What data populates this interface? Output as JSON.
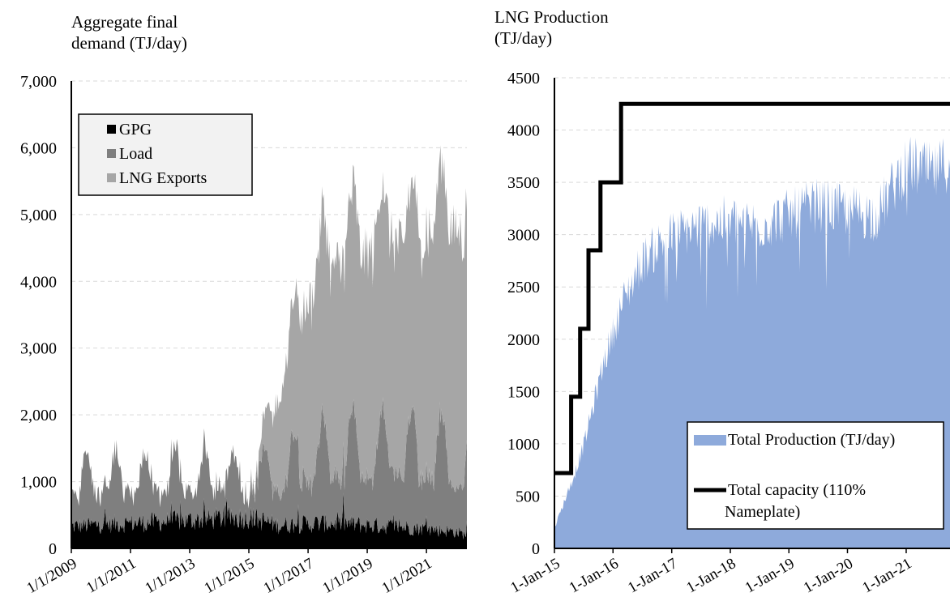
{
  "chart_data": [
    {
      "type": "area",
      "stacked": true,
      "ylabel": [
        "Aggregate final",
        "demand (TJ/day)"
      ],
      "ylim": [
        0,
        7000
      ],
      "yticks": [
        0,
        1000,
        2000,
        3000,
        4000,
        5000,
        6000,
        7000
      ],
      "ytick_labels": [
        "0",
        "1,000",
        "2,000",
        "3,000",
        "4,000",
        "5,000",
        "6,000",
        "7,000"
      ],
      "xlim": [
        "2009-01-01",
        "2022-05-15"
      ],
      "xticks": [
        "2009-01-01",
        "2011-01-01",
        "2013-01-01",
        "2015-01-01",
        "2017-01-01",
        "2019-01-01",
        "2021-01-01"
      ],
      "xtick_labels": [
        "1/1/2009",
        "1/1/2011",
        "1/1/2013",
        "1/1/2015",
        "1/1/2017",
        "1/1/2019",
        "1/1/2021"
      ],
      "grid": "horizontal-dashed",
      "legend": "top-left",
      "series": [
        {
          "name": "GPG",
          "color": "#000000",
          "dates": [
            "2009-01-01",
            "2010-01-01",
            "2011-01-01",
            "2012-01-01",
            "2013-01-01",
            "2014-01-01",
            "2015-01-01",
            "2016-01-01",
            "2017-01-01",
            "2018-01-01",
            "2019-01-01",
            "2020-01-01",
            "2021-01-01",
            "2022-01-01",
            "2022-05-15"
          ],
          "values": [
            330,
            360,
            380,
            400,
            420,
            450,
            470,
            350,
            370,
            380,
            350,
            330,
            300,
            250,
            200
          ]
        },
        {
          "name": "Load",
          "color": "#7f7f7f",
          "dates": [
            "2009-01-01",
            "2010-01-01",
            "2011-01-01",
            "2012-01-01",
            "2013-01-01",
            "2014-01-01",
            "2015-01-01",
            "2016-01-01",
            "2017-01-01",
            "2018-01-01",
            "2019-01-01",
            "2020-01-01",
            "2021-01-01",
            "2022-01-01",
            "2022-05-15"
          ],
          "values": [
            700,
            720,
            700,
            680,
            660,
            650,
            640,
            800,
            1000,
            1100,
            1150,
            1200,
            1200,
            1150,
            1050
          ]
        },
        {
          "name": "LNG Exports",
          "color": "#a6a6a6",
          "dates": [
            "2009-01-01",
            "2015-01-01",
            "2015-05-01",
            "2015-09-01",
            "2016-01-01",
            "2016-05-01",
            "2016-09-01",
            "2017-01-01",
            "2017-07-01",
            "2018-01-01",
            "2018-07-01",
            "2019-01-01",
            "2019-07-01",
            "2020-01-01",
            "2020-07-01",
            "2021-01-01",
            "2021-07-01",
            "2022-01-01",
            "2022-05-15"
          ],
          "values": [
            0,
            0,
            150,
            800,
            1400,
            1900,
            2300,
            2700,
            3100,
            3200,
            3300,
            3400,
            3450,
            3500,
            3400,
            3700,
            3800,
            3900,
            3700
          ]
        }
      ]
    },
    {
      "type": "area",
      "ylabel": [
        "LNG Production",
        "(TJ/day)"
      ],
      "ylim": [
        0,
        4500
      ],
      "yticks": [
        0,
        500,
        1000,
        1500,
        2000,
        2500,
        3000,
        3500,
        4000,
        4500
      ],
      "ytick_labels": [
        "0",
        "500",
        "1000",
        "1500",
        "2000",
        "2500",
        "3000",
        "3500",
        "4000",
        "4500"
      ],
      "xlim": [
        "2015-01-01",
        "2021-10-01"
      ],
      "xticks": [
        "2015-01-01",
        "2016-01-01",
        "2017-01-01",
        "2018-01-01",
        "2019-01-01",
        "2020-01-01",
        "2021-01-01"
      ],
      "xtick_labels": [
        "1-Jan-15",
        "1-Jan-16",
        "1-Jan-17",
        "1-Jan-18",
        "1-Jan-19",
        "1-Jan-20",
        "1-Jan-21"
      ],
      "grid": "horizontal-dashed",
      "legend": "bottom-right",
      "series": [
        {
          "name": "Total Production (TJ/day)",
          "color": "#8eaadb",
          "dates": [
            "2015-01-01",
            "2015-03-01",
            "2015-05-01",
            "2015-07-01",
            "2015-09-01",
            "2015-11-01",
            "2016-01-01",
            "2016-03-01",
            "2016-05-01",
            "2016-07-01",
            "2016-09-01",
            "2016-11-01",
            "2017-01-01",
            "2017-07-01",
            "2018-01-01",
            "2018-07-01",
            "2019-01-01",
            "2019-07-01",
            "2020-01-01",
            "2020-07-01",
            "2021-01-01",
            "2021-07-01",
            "2021-10-01"
          ],
          "values": [
            200,
            450,
            700,
            1000,
            1400,
            1800,
            2100,
            2400,
            2600,
            2800,
            2900,
            3000,
            3050,
            3150,
            3200,
            3150,
            3250,
            3350,
            3300,
            3250,
            3750,
            3650,
            3800
          ]
        },
        {
          "name": [
            "Total capacity (110%",
            "Nameplate)"
          ],
          "color": "#000000",
          "type": "step",
          "dates": [
            "2015-01-01",
            "2015-04-15",
            "2015-06-10",
            "2015-08-01",
            "2015-10-15",
            "2016-02-20",
            "2016-07-10",
            "2016-10-20"
          ],
          "values": [
            720,
            1450,
            2100,
            2850,
            3500,
            4250,
            4250,
            4250
          ]
        }
      ]
    }
  ]
}
